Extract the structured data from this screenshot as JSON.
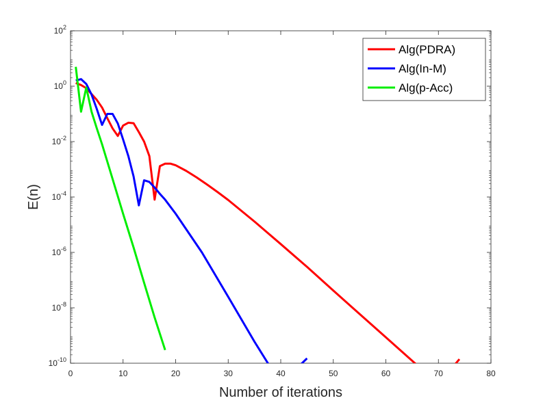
{
  "chart_data": {
    "type": "line",
    "title": "",
    "xlabel": "Number of iterations",
    "ylabel": "E(n)",
    "xlim": [
      0,
      80
    ],
    "ylim": [
      1e-10,
      100
    ],
    "yscale": "log",
    "grid": false,
    "legend_position": "top-right",
    "x_ticks": [
      0,
      10,
      20,
      30,
      40,
      50,
      60,
      70,
      80
    ],
    "y_ticks": [
      {
        "value": 1e-10,
        "base": "10",
        "exp": "-10"
      },
      {
        "value": 1e-08,
        "base": "10",
        "exp": "-8"
      },
      {
        "value": 1e-06,
        "base": "10",
        "exp": "-6"
      },
      {
        "value": 0.0001,
        "base": "10",
        "exp": "-4"
      },
      {
        "value": 0.01,
        "base": "10",
        "exp": "-2"
      },
      {
        "value": 1,
        "base": "10",
        "exp": "0"
      },
      {
        "value": 100,
        "base": "10",
        "exp": "2"
      }
    ],
    "series": [
      {
        "name": "Alg(PDRA)",
        "color": "#ff0000",
        "x": [
          1,
          2,
          3,
          4,
          5,
          6,
          7,
          8,
          9,
          10,
          11,
          12,
          13,
          14,
          15,
          16,
          17,
          18,
          19,
          20,
          22,
          24,
          26,
          28,
          30,
          35,
          40,
          45,
          50,
          55,
          60,
          65,
          70,
          74
        ],
        "y": [
          1.3,
          1.1,
          0.85,
          0.52,
          0.32,
          0.17,
          0.07,
          0.03,
          0.016,
          0.038,
          0.048,
          0.046,
          0.022,
          0.01,
          0.003,
          8e-05,
          0.0013,
          0.0016,
          0.0016,
          0.0014,
          0.00088,
          0.00051,
          0.00028,
          0.00015,
          7.8e-05,
          1.3e-05,
          2e-06,
          3e-07,
          4.2e-08,
          6e-09,
          8.6e-10,
          1.23e-10,
          1.8e-11,
          1.4e-10
        ]
      },
      {
        "name": "Alg(In-M)",
        "color": "#0000ff",
        "x": [
          1,
          2,
          3,
          4,
          5,
          6,
          7,
          8,
          9,
          10,
          11,
          12,
          13,
          14,
          15,
          16,
          17,
          18,
          20,
          25,
          30,
          35,
          40,
          45
        ],
        "y": [
          1.6,
          1.8,
          1.2,
          0.5,
          0.15,
          0.04,
          0.1,
          0.1,
          0.045,
          0.012,
          0.003,
          0.00055,
          5e-05,
          0.0004,
          0.00035,
          0.00022,
          0.00013,
          8e-05,
          2.5e-05,
          1e-06,
          2.5e-08,
          6e-10,
          1.8e-11,
          1.5e-10
        ]
      },
      {
        "name": "Alg(p-Acc)",
        "color": "#00ee00",
        "x": [
          1,
          2,
          3,
          4,
          5,
          6,
          8,
          10,
          12,
          14,
          16,
          18
        ],
        "y": [
          5,
          0.12,
          0.9,
          0.12,
          0.03,
          0.008,
          0.00045,
          2.5e-05,
          1.5e-06,
          8e-08,
          4.5e-09,
          3e-10
        ]
      }
    ]
  }
}
